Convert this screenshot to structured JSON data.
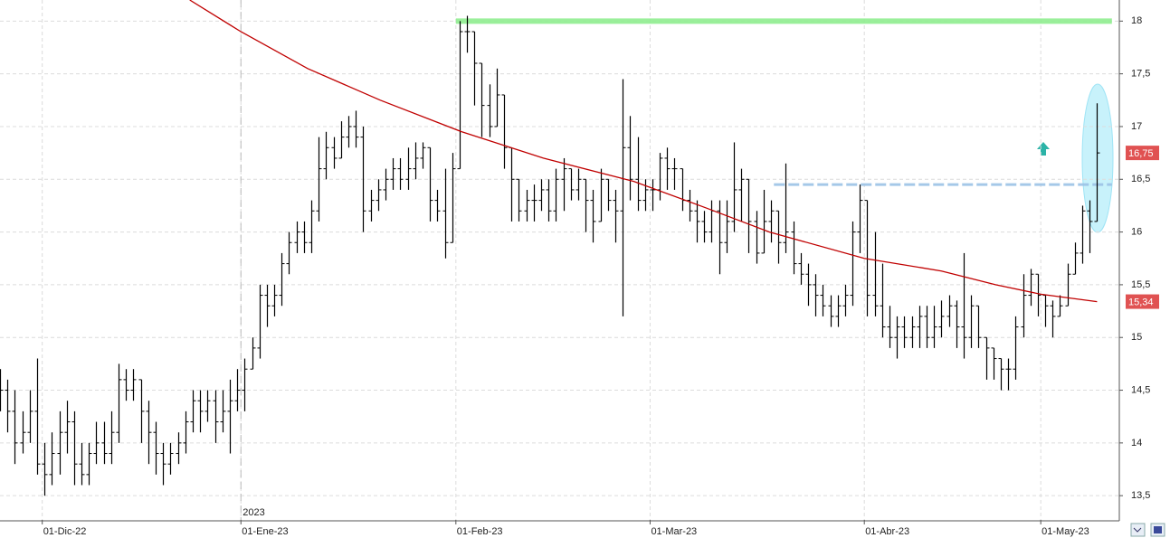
{
  "chart_data": {
    "type": "ohlc",
    "xlim": [
      0,
      151
    ],
    "ylim": [
      13.27,
      18.2
    ],
    "yticks": [
      {
        "value": 13.5,
        "label": "13,5"
      },
      14,
      {
        "value": 14.5,
        "label": "14,5"
      },
      15,
      {
        "value": 15.5,
        "label": "15,5"
      },
      16,
      {
        "value": 16.5,
        "label": "16,5"
      },
      17,
      {
        "value": 17.5,
        "label": "17,5"
      },
      18
    ],
    "xticks": [
      {
        "value": 5.7,
        "label": "01-Dic-22"
      },
      {
        "value": 32.5,
        "label": "01-Ene-23"
      },
      {
        "value": 61.5,
        "label": "01-Feb-23"
      },
      {
        "value": 87.7,
        "label": "01-Mar-23"
      },
      {
        "value": 116.6,
        "label": "01-Abr-23"
      },
      {
        "value": 140.4,
        "label": "01-May-23"
      }
    ],
    "year_marker": {
      "value": 32.5,
      "label": "2023"
    },
    "grid": true,
    "series": [
      {
        "color": "#000000",
        "x": [
          0,
          1,
          2,
          3,
          4,
          5,
          6,
          7,
          8,
          9,
          10,
          11,
          12,
          13,
          14,
          15,
          16,
          17,
          18,
          19,
          20,
          21,
          22,
          23,
          24,
          25,
          26,
          27,
          28,
          29,
          30,
          31,
          32,
          33,
          34,
          35,
          36,
          37,
          38,
          39,
          40,
          41,
          42,
          43,
          44,
          45,
          46,
          47,
          48,
          49,
          50,
          51,
          52,
          53,
          54,
          55,
          56,
          57,
          58,
          59,
          60,
          61,
          62,
          63,
          64,
          65,
          66,
          67,
          68,
          69,
          70,
          71,
          72,
          73,
          74,
          75,
          76,
          77,
          78,
          79,
          80,
          81,
          82,
          83,
          84,
          85,
          86,
          87,
          88,
          89,
          90,
          91,
          92,
          93,
          94,
          95,
          96,
          97,
          98,
          99,
          100,
          101,
          102,
          103,
          104,
          105,
          106,
          107,
          108,
          109,
          110,
          111,
          112,
          113,
          114,
          115,
          116,
          117,
          118,
          119,
          120,
          121,
          122,
          123,
          124,
          125,
          126,
          127,
          128,
          129,
          130,
          131,
          132,
          133,
          134,
          135,
          136,
          137,
          138,
          139,
          140,
          141,
          142,
          143,
          144,
          145,
          146,
          147,
          148
        ],
        "open": [
          14.6,
          14.5,
          14.3,
          14.0,
          14.1,
          14.3,
          13.8,
          13.7,
          13.9,
          14.1,
          14.2,
          13.8,
          13.7,
          13.9,
          14.0,
          13.9,
          14.1,
          14.6,
          14.5,
          14.6,
          14.3,
          14.1,
          13.9,
          13.8,
          13.9,
          14.0,
          14.2,
          14.4,
          14.3,
          14.4,
          14.2,
          14.3,
          14.4,
          14.5,
          14.7,
          14.9,
          15.4,
          15.3,
          15.4,
          15.7,
          15.9,
          16.0,
          15.9,
          16.2,
          16.6,
          16.8,
          16.7,
          16.9,
          17.0,
          16.9,
          16.2,
          16.3,
          16.4,
          16.5,
          16.6,
          16.5,
          16.6,
          16.7,
          16.8,
          16.3,
          16.2,
          15.9,
          16.6,
          17.9,
          17.9,
          17.6,
          17.2,
          17.0,
          17.3,
          16.8,
          16.5,
          16.2,
          16.3,
          16.3,
          16.4,
          16.2,
          16.5,
          16.6,
          16.4,
          16.5,
          16.3,
          16.1,
          16.5,
          16.3,
          16.2,
          16.8,
          16.5,
          16.3,
          16.4,
          16.4,
          16.7,
          16.6,
          16.6,
          16.3,
          16.2,
          16.1,
          16.0,
          16.2,
          15.9,
          16.1,
          16.4,
          16.5,
          16.1,
          15.8,
          16.1,
          16.2,
          15.9,
          16.0,
          15.7,
          15.6,
          15.5,
          15.4,
          15.3,
          15.2,
          15.3,
          15.4,
          16.0,
          16.3,
          15.4,
          15.3,
          15.1,
          15.0,
          15.1,
          15.0,
          15.1,
          15.2,
          15.0,
          15.1,
          15.2,
          15.3,
          15.1,
          15.0,
          15.3,
          15.0,
          14.9,
          14.8,
          14.7,
          14.7,
          15.1,
          15.4,
          15.6,
          15.4,
          15.3,
          15.2,
          15.3,
          15.6,
          15.8,
          16.2,
          16.1
        ],
        "high": [
          14.7,
          14.6,
          14.5,
          14.3,
          14.5,
          14.8,
          14.0,
          14.1,
          14.3,
          14.4,
          14.3,
          14.0,
          14.0,
          14.2,
          14.2,
          14.3,
          14.75,
          14.7,
          14.7,
          14.6,
          14.4,
          14.2,
          14.0,
          14.0,
          14.1,
          14.3,
          14.5,
          14.5,
          14.5,
          14.5,
          14.5,
          14.6,
          14.7,
          14.8,
          15.0,
          15.5,
          15.5,
          15.5,
          15.8,
          16.0,
          16.1,
          16.1,
          16.3,
          16.9,
          16.95,
          16.9,
          17.05,
          17.1,
          17.15,
          17.0,
          16.4,
          16.5,
          16.6,
          16.7,
          16.7,
          16.8,
          16.85,
          16.85,
          16.8,
          16.4,
          16.6,
          16.75,
          18.0,
          18.05,
          17.9,
          17.6,
          17.4,
          17.55,
          17.3,
          16.8,
          16.5,
          16.4,
          16.45,
          16.5,
          16.5,
          16.6,
          16.7,
          16.6,
          16.6,
          16.5,
          16.4,
          16.6,
          16.5,
          16.4,
          17.45,
          17.1,
          16.9,
          16.5,
          16.5,
          16.75,
          16.8,
          16.7,
          16.6,
          16.4,
          16.3,
          16.2,
          16.3,
          16.3,
          16.3,
          16.85,
          16.6,
          16.5,
          16.2,
          16.4,
          16.3,
          16.2,
          16.65,
          16.1,
          15.8,
          15.7,
          15.6,
          15.5,
          15.4,
          15.4,
          15.5,
          16.1,
          16.45,
          16.3,
          16.0,
          15.7,
          15.3,
          15.2,
          15.2,
          15.2,
          15.3,
          15.3,
          15.3,
          15.35,
          15.4,
          15.35,
          15.8,
          15.4,
          15.3,
          15.0,
          14.9,
          14.8,
          14.8,
          15.2,
          15.6,
          15.65,
          15.6,
          15.4,
          15.35,
          15.4,
          15.7,
          15.9,
          16.25,
          16.3,
          17.22
        ],
        "low": [
          14.3,
          14.1,
          13.8,
          13.9,
          14.0,
          13.7,
          13.5,
          13.6,
          13.7,
          13.9,
          13.6,
          13.6,
          13.6,
          13.8,
          13.8,
          13.8,
          14.0,
          14.4,
          14.4,
          14.0,
          13.8,
          13.7,
          13.6,
          13.7,
          13.8,
          13.9,
          14.1,
          14.1,
          14.2,
          14.0,
          14.1,
          13.9,
          14.3,
          14.3,
          14.7,
          14.8,
          15.1,
          15.2,
          15.3,
          15.6,
          15.8,
          15.8,
          15.8,
          16.1,
          16.5,
          16.6,
          16.7,
          16.8,
          16.8,
          16.0,
          16.1,
          16.2,
          16.3,
          16.4,
          16.4,
          16.4,
          16.5,
          16.6,
          16.1,
          16.1,
          15.75,
          15.9,
          16.6,
          17.7,
          17.2,
          16.9,
          16.9,
          17.0,
          16.6,
          16.1,
          16.1,
          16.1,
          16.1,
          16.2,
          16.1,
          16.1,
          16.2,
          16.3,
          16.3,
          16.0,
          15.9,
          16.1,
          16.2,
          15.9,
          15.2,
          16.3,
          16.2,
          16.2,
          16.2,
          16.3,
          16.4,
          16.4,
          16.2,
          16.1,
          15.9,
          15.9,
          15.9,
          15.6,
          15.8,
          16.0,
          16.1,
          15.8,
          15.7,
          15.8,
          15.9,
          15.7,
          15.8,
          15.6,
          15.5,
          15.3,
          15.2,
          15.2,
          15.1,
          15.1,
          15.2,
          15.3,
          15.8,
          15.2,
          15.2,
          15.0,
          14.9,
          14.8,
          14.9,
          14.9,
          14.9,
          14.9,
          14.9,
          15.0,
          15.1,
          14.9,
          14.8,
          14.9,
          14.9,
          14.6,
          14.6,
          14.5,
          14.5,
          14.6,
          15.0,
          15.3,
          15.2,
          15.1,
          15.0,
          15.2,
          15.3,
          15.6,
          15.7,
          15.8,
          16.1
        ],
        "close": [
          14.5,
          14.3,
          14.0,
          14.1,
          14.3,
          13.8,
          13.7,
          13.9,
          14.1,
          14.2,
          13.8,
          13.7,
          13.9,
          14.0,
          13.9,
          14.1,
          14.6,
          14.5,
          14.6,
          14.3,
          14.1,
          13.9,
          13.8,
          13.9,
          14.0,
          14.2,
          14.4,
          14.3,
          14.4,
          14.2,
          14.3,
          14.4,
          14.5,
          14.7,
          14.9,
          15.4,
          15.3,
          15.4,
          15.7,
          15.9,
          16.0,
          15.9,
          16.2,
          16.6,
          16.8,
          16.7,
          16.9,
          17.0,
          16.9,
          16.2,
          16.3,
          16.4,
          16.5,
          16.6,
          16.5,
          16.6,
          16.7,
          16.8,
          16.3,
          16.2,
          15.9,
          16.6,
          17.9,
          17.9,
          17.6,
          17.2,
          17.0,
          17.3,
          16.8,
          16.5,
          16.2,
          16.3,
          16.3,
          16.4,
          16.2,
          16.5,
          16.6,
          16.4,
          16.5,
          16.3,
          16.1,
          16.5,
          16.3,
          16.2,
          16.8,
          16.5,
          16.3,
          16.4,
          16.4,
          16.7,
          16.6,
          16.6,
          16.3,
          16.2,
          16.1,
          16.0,
          16.2,
          15.9,
          16.1,
          16.4,
          16.5,
          16.1,
          15.8,
          16.1,
          16.2,
          15.9,
          16.0,
          15.7,
          15.6,
          15.5,
          15.4,
          15.3,
          15.2,
          15.3,
          15.4,
          16.0,
          16.3,
          15.4,
          15.3,
          15.1,
          15.0,
          15.1,
          15.0,
          15.1,
          15.2,
          15.0,
          15.1,
          15.2,
          15.3,
          15.1,
          15.0,
          15.3,
          15.0,
          14.9,
          14.8,
          14.7,
          14.7,
          15.1,
          15.4,
          15.6,
          15.4,
          15.3,
          15.2,
          15.3,
          15.6,
          15.8,
          16.2,
          16.1,
          16.75
        ]
      },
      {
        "type": "line",
        "color": "#c00000",
        "x": [
          25.6,
          32.5,
          41.5,
          51.3,
          62.3,
          73.3,
          85.5,
          95.2,
          103.8,
          116.6,
          127,
          134.3,
          140.4,
          148
        ],
        "values": [
          18.2,
          17.9,
          17.55,
          17.25,
          16.95,
          16.7,
          16.48,
          16.23,
          16.0,
          15.75,
          15.63,
          15.5,
          15.41,
          15.34
        ]
      }
    ],
    "hlines": [
      {
        "value": 18.0,
        "x": [
          61.5,
          150
        ],
        "color": "#90ee90",
        "style": "solid"
      },
      {
        "value": 16.45,
        "x": [
          104.4,
          150
        ],
        "color": "#9cc3e6",
        "style": "dashed"
      }
    ],
    "price_tags": [
      {
        "value": 16.75,
        "label": "16,75",
        "color": "#e05252"
      },
      {
        "value": 15.34,
        "label": "15,34",
        "color": "#e05252"
      }
    ]
  }
}
